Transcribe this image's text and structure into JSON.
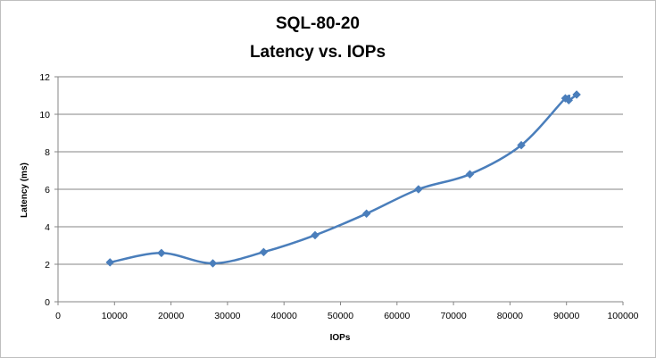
{
  "chart_data": {
    "type": "line",
    "title": "SQL-80-20",
    "subtitle": "Latency vs. IOPs",
    "xlabel": "IOPs",
    "ylabel": "Latency (ms)",
    "xlim": [
      0,
      100000
    ],
    "ylim": [
      0,
      12
    ],
    "xticks": [
      "0",
      "10000",
      "20000",
      "30000",
      "40000",
      "50000",
      "60000",
      "70000",
      "80000",
      "90000",
      "100000"
    ],
    "yticks": [
      "0",
      "2",
      "4",
      "6",
      "8",
      "10",
      "12"
    ],
    "grid": "horizontal",
    "legend": "none",
    "smooth": true,
    "series": [
      {
        "color": "#4a7ebb",
        "marker": "diamond",
        "x": [
          9200,
          18300,
          27400,
          36400,
          45500,
          54600,
          63800,
          72900,
          82000,
          89800,
          90400,
          91800
        ],
        "y": [
          2.1,
          2.6,
          2.05,
          2.65,
          3.55,
          4.7,
          6.0,
          6.8,
          8.35,
          10.85,
          10.75,
          11.05
        ]
      }
    ]
  }
}
